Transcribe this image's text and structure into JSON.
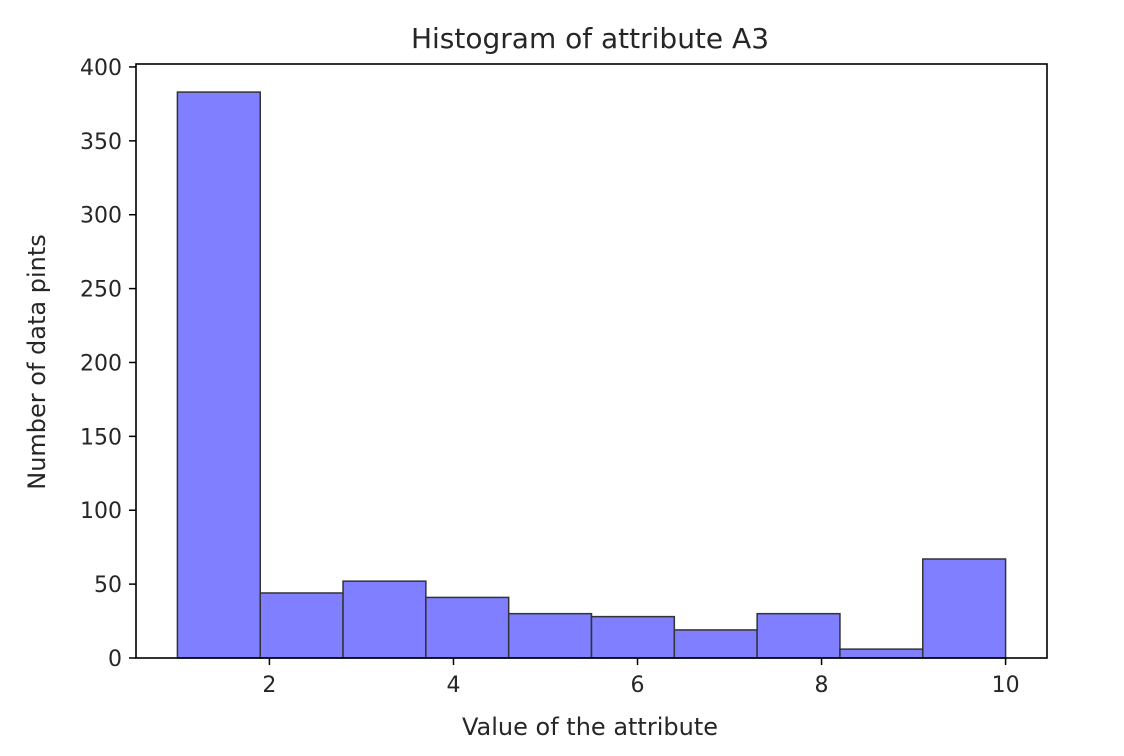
{
  "chart_data": {
    "type": "bar",
    "title": "Histogram of attribute A3",
    "xlabel": "Value of the attribute",
    "ylabel": "Number of data pints",
    "xlim": [
      0.55,
      10.45
    ],
    "ylim": [
      0,
      402
    ],
    "xticks": [
      2,
      4,
      6,
      8,
      10
    ],
    "yticks": [
      0,
      50,
      100,
      150,
      200,
      250,
      300,
      350,
      400
    ],
    "bins": [
      {
        "start": 1.0,
        "end": 1.9,
        "count": 383
      },
      {
        "start": 1.9,
        "end": 2.8,
        "count": 44
      },
      {
        "start": 2.8,
        "end": 3.7,
        "count": 52
      },
      {
        "start": 3.7,
        "end": 4.6,
        "count": 41
      },
      {
        "start": 4.6,
        "end": 5.5,
        "count": 30
      },
      {
        "start": 5.5,
        "end": 6.4,
        "count": 28
      },
      {
        "start": 6.4,
        "end": 7.3,
        "count": 19
      },
      {
        "start": 7.3,
        "end": 8.2,
        "count": 30
      },
      {
        "start": 8.2,
        "end": 9.1,
        "count": 6
      },
      {
        "start": 9.1,
        "end": 10.0,
        "count": 67
      }
    ],
    "bar_color": "#7f7fff",
    "edge_color": "#333333",
    "grid": false,
    "legend": "none"
  }
}
